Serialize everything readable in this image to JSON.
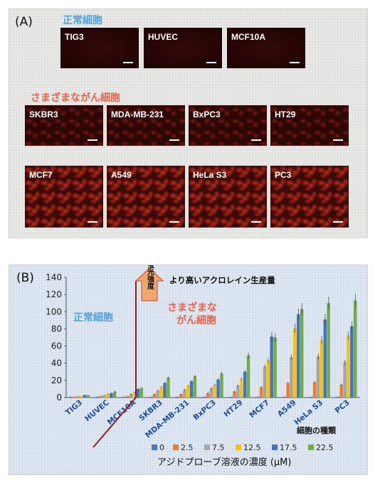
{
  "panel_a": {
    "label": "(A)",
    "normal_title": "正常細胞",
    "cancer_title": "さまざまながん細胞",
    "normal_cells": [
      "TIG3",
      "HUVEC",
      "MCF10A"
    ],
    "cancer_cells_row1": [
      "SKBR3",
      "MDA-MB-231",
      "BxPC3",
      "HT29"
    ],
    "cancer_cells_row2": [
      "MCF7",
      "A549",
      "HeLa S3",
      "PC3"
    ]
  },
  "panel_b": {
    "label": "(B)",
    "normal_label": "正常細胞",
    "cancer_label_line1": "さまざまな",
    "cancer_label_line2": "がん細胞",
    "arrow_label": "蛍光強度",
    "arrow_text": "より高いアクロレイン生産量",
    "x_axis_title": "細胞の種類",
    "legend_title": "アジドプローブ溶液の濃度 (μM)"
  },
  "chart_data": {
    "type": "bar",
    "categories": [
      "TIG3",
      "HUVEC",
      "MCF10A",
      "SKBR3",
      "MDA-MB-231",
      "BxPC3",
      "HT29",
      "MCF7",
      "A549",
      "HeLa S3",
      "PC3"
    ],
    "ylim": [
      0,
      140
    ],
    "yticks": [
      0,
      20,
      40,
      60,
      80,
      100,
      120,
      140
    ],
    "xlabel": "細胞の種類",
    "ylabel": "",
    "legend_position": "bottom",
    "series": [
      {
        "name": "0",
        "color": "#4a78c2",
        "values": [
          1,
          1,
          1,
          1,
          1,
          1,
          1,
          1,
          1,
          1,
          1
        ]
      },
      {
        "name": "2.5",
        "color": "#ed7d31",
        "values": [
          1,
          2,
          2,
          4,
          4,
          5,
          7,
          12,
          17,
          18,
          15
        ]
      },
      {
        "name": "7.5",
        "color": "#a5a5a5",
        "values": [
          2,
          3,
          4,
          8,
          9,
          11,
          14,
          36,
          47,
          48,
          41
        ]
      },
      {
        "name": "12.5",
        "color": "#ffc000",
        "values": [
          2,
          4,
          6,
          12,
          14,
          15,
          22,
          43,
          81,
          67,
          72
        ]
      },
      {
        "name": "17.5",
        "color": "#4472c4",
        "values": [
          3,
          5,
          10,
          17,
          19,
          21,
          30,
          71,
          97,
          91,
          83
        ]
      },
      {
        "name": "22.5",
        "color": "#70ad47",
        "values": [
          3,
          7,
          11,
          23,
          25,
          28,
          49,
          70,
          103,
          110,
          113
        ]
      }
    ]
  }
}
